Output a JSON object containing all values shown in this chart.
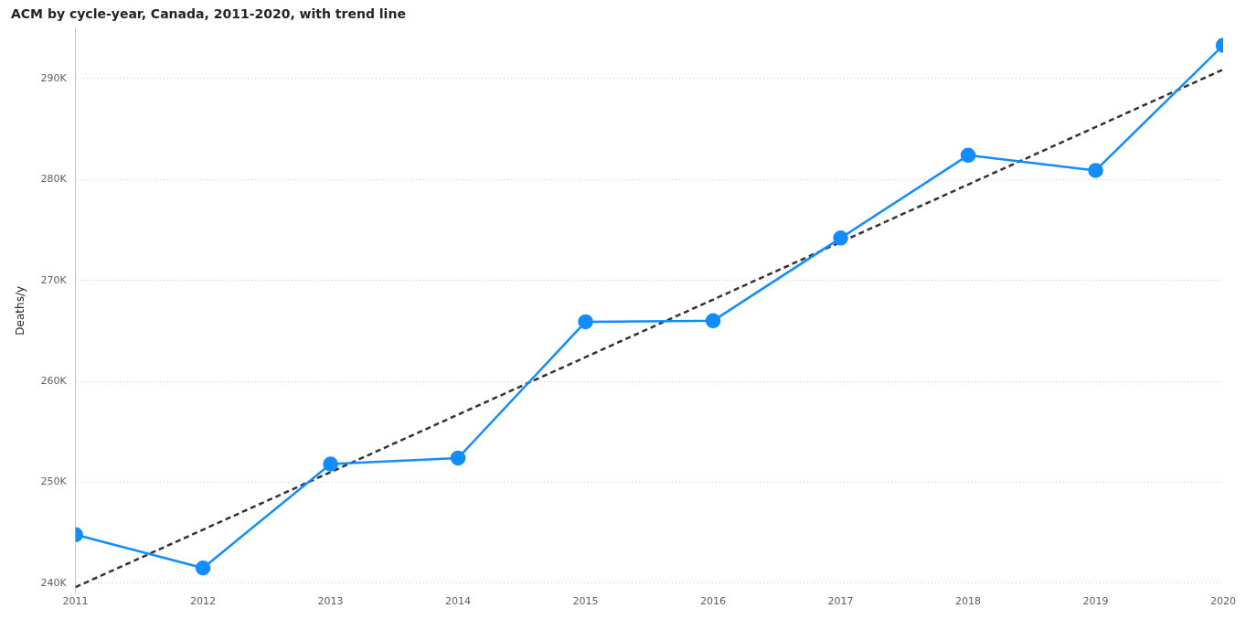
{
  "chart_data": {
    "type": "line",
    "title": "ACM by cycle-year, Canada, 2011-2020, with trend line",
    "ylabel": "Deaths/y",
    "x": [
      2011,
      2012,
      2013,
      2014,
      2015,
      2016,
      2017,
      2018,
      2019,
      2020
    ],
    "series": [
      {
        "color": "#118dff",
        "marker": "circle",
        "line_style": "solid",
        "values": [
          244800,
          241500,
          251800,
          252400,
          265900,
          266000,
          274200,
          282400,
          280900,
          293300
        ]
      },
      {
        "type": "line",
        "color": "#333333",
        "marker": "none",
        "line_style": "dashed",
        "x": [
          2011,
          2020
        ],
        "values": [
          239600,
          290900
        ]
      }
    ],
    "xlim": [
      2011,
      2020
    ],
    "xticks": [
      2011,
      2012,
      2013,
      2014,
      2015,
      2016,
      2017,
      2018,
      2019,
      2020
    ],
    "ylim": [
      239000,
      295000
    ],
    "yticks": [
      {
        "value": 240000,
        "label": "240K"
      },
      {
        "value": 250000,
        "label": "250K"
      },
      {
        "value": 260000,
        "label": "260K"
      },
      {
        "value": 270000,
        "label": "270K"
      },
      {
        "value": 280000,
        "label": "280K"
      },
      {
        "value": 290000,
        "label": "290K"
      }
    ],
    "grid": "y",
    "legend": false
  }
}
